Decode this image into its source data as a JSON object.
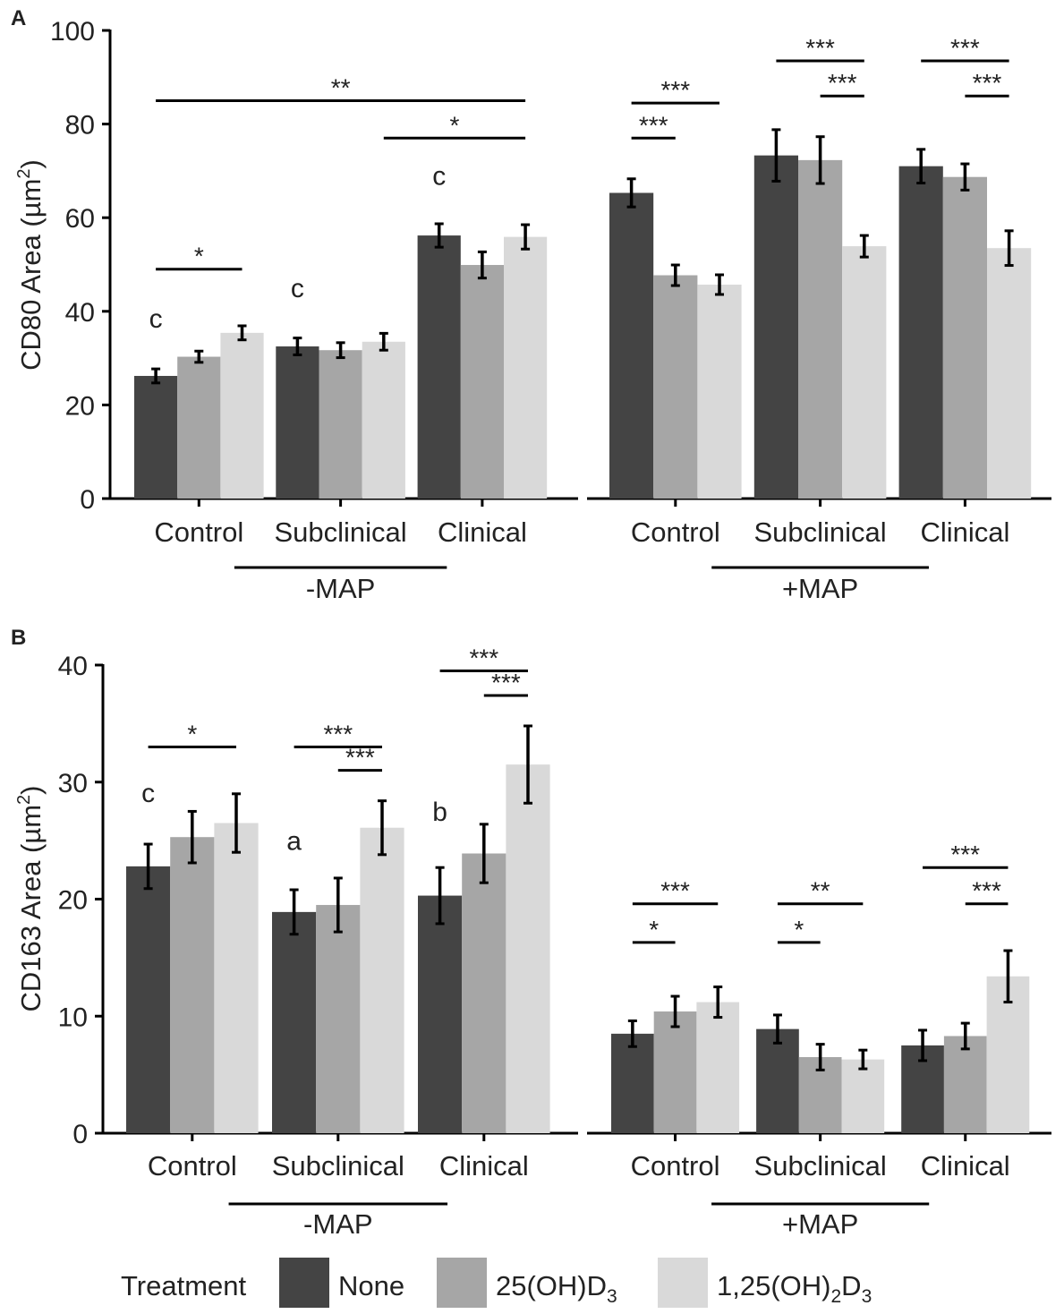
{
  "figure": {
    "panel_a_label": "A",
    "panel_b_label": "B"
  },
  "legend": {
    "title": "Treatment",
    "items": [
      {
        "label": "None",
        "color": "#444444"
      },
      {
        "label": "25(OH)D",
        "sub": "3",
        "color": "#a6a6a6"
      },
      {
        "label": "1,25(OH)",
        "sub": "2",
        "label2": "D",
        "sub2": "3",
        "color": "#d9d9d9"
      }
    ]
  },
  "chart_data": [
    {
      "type": "bar",
      "panel": "A",
      "ylabel": "CD80 Area (µm",
      "ylabel_sup": "2",
      "ylabel_end": ")",
      "ylim": [
        0,
        100
      ],
      "yticks": [
        0,
        20,
        40,
        60,
        80,
        100
      ],
      "groups": [
        {
          "name": "-MAP",
          "categories": [
            "Control",
            "Subclinical",
            "Clinical"
          ]
        },
        {
          "name": "+MAP",
          "categories": [
            "Control",
            "Subclinical",
            "Clinical"
          ]
        }
      ],
      "series": [
        {
          "name": "None",
          "values": [
            [
              26.2,
              32.5,
              56.2
            ],
            [
              65.3,
              73.3,
              71.0
            ]
          ],
          "errors": [
            [
              1.5,
              1.8,
              2.5
            ],
            [
              3.0,
              5.5,
              3.6
            ]
          ]
        },
        {
          "name": "25(OH)D3",
          "values": [
            [
              30.3,
              31.7,
              49.9
            ],
            [
              47.7,
              72.3,
              68.7
            ]
          ],
          "errors": [
            [
              1.2,
              1.6,
              2.8
            ],
            [
              2.2,
              5.0,
              2.8
            ]
          ]
        },
        {
          "name": "1,25(OH)2D3",
          "values": [
            [
              35.4,
              33.5,
              55.9
            ],
            [
              45.7,
              53.9,
              53.5
            ]
          ],
          "errors": [
            [
              1.5,
              1.8,
              2.6
            ],
            [
              2.1,
              2.3,
              3.7
            ]
          ]
        }
      ],
      "letters": [
        {
          "text": "c",
          "group": 0,
          "cat": 0,
          "y": 36.5
        },
        {
          "text": "c",
          "group": 0,
          "cat": 1,
          "y": 43
        },
        {
          "text": "c",
          "group": 0,
          "cat": 2,
          "y": 67
        }
      ],
      "brackets": [
        {
          "label": "*",
          "group": 0,
          "from": [
            0,
            0
          ],
          "to": [
            0,
            2
          ],
          "y": 49
        },
        {
          "label": "**",
          "group": 0,
          "from": [
            0,
            0
          ],
          "to": [
            2,
            2
          ],
          "y": 85
        },
        {
          "label": "*",
          "group": 0,
          "from": [
            1,
            2
          ],
          "to": [
            2,
            2
          ],
          "y": 77
        },
        {
          "label": "***",
          "group": 1,
          "from": [
            0,
            0
          ],
          "to": [
            0,
            1
          ],
          "y": 77
        },
        {
          "label": "***",
          "group": 1,
          "from": [
            0,
            0
          ],
          "to": [
            0,
            2
          ],
          "y": 84.5
        },
        {
          "label": "***",
          "group": 1,
          "from": [
            1,
            0
          ],
          "to": [
            1,
            2
          ],
          "y": 93.5
        },
        {
          "label": "***",
          "group": 1,
          "from": [
            1,
            1
          ],
          "to": [
            1,
            2
          ],
          "y": 86
        },
        {
          "label": "***",
          "group": 1,
          "from": [
            2,
            0
          ],
          "to": [
            2,
            2
          ],
          "y": 93.5
        },
        {
          "label": "***",
          "group": 1,
          "from": [
            2,
            1
          ],
          "to": [
            2,
            2
          ],
          "y": 86
        }
      ]
    },
    {
      "type": "bar",
      "panel": "B",
      "ylabel": "CD163 Area (µm",
      "ylabel_sup": "2",
      "ylabel_end": ")",
      "ylim": [
        0,
        40
      ],
      "yticks": [
        0,
        10,
        20,
        30,
        40
      ],
      "groups": [
        {
          "name": "-MAP",
          "categories": [
            "Control",
            "Subclinical",
            "Clinical"
          ]
        },
        {
          "name": "+MAP",
          "categories": [
            "Control",
            "Subclinical",
            "Clinical"
          ]
        }
      ],
      "series": [
        {
          "name": "None",
          "values": [
            [
              22.8,
              18.9,
              20.3
            ],
            [
              8.5,
              8.9,
              7.5
            ]
          ],
          "errors": [
            [
              1.9,
              1.9,
              2.4
            ],
            [
              1.1,
              1.2,
              1.3
            ]
          ]
        },
        {
          "name": "25(OH)D3",
          "values": [
            [
              25.3,
              19.5,
              23.9
            ],
            [
              10.4,
              6.5,
              8.3
            ]
          ],
          "errors": [
            [
              2.2,
              2.3,
              2.5
            ],
            [
              1.3,
              1.1,
              1.1
            ]
          ]
        },
        {
          "name": "1,25(OH)2D3",
          "values": [
            [
              26.5,
              26.1,
              31.5
            ],
            [
              11.2,
              6.3,
              13.4
            ]
          ],
          "errors": [
            [
              2.5,
              2.3,
              3.3
            ],
            [
              1.3,
              0.8,
              2.2
            ]
          ]
        }
      ],
      "letters": [
        {
          "text": "c",
          "group": 0,
          "cat": 0,
          "y": 28.3
        },
        {
          "text": "a",
          "group": 0,
          "cat": 1,
          "y": 24.2
        },
        {
          "text": "b",
          "group": 0,
          "cat": 2,
          "y": 26.7
        }
      ],
      "brackets": [
        {
          "label": "*",
          "group": 0,
          "from": [
            0,
            0
          ],
          "to": [
            0,
            2
          ],
          "y": 33
        },
        {
          "label": "***",
          "group": 0,
          "from": [
            1,
            0
          ],
          "to": [
            1,
            2
          ],
          "y": 33
        },
        {
          "label": "***",
          "group": 0,
          "from": [
            1,
            1
          ],
          "to": [
            1,
            2
          ],
          "y": 31
        },
        {
          "label": "***",
          "group": 0,
          "from": [
            2,
            0
          ],
          "to": [
            2,
            2
          ],
          "y": 39.5
        },
        {
          "label": "***",
          "group": 0,
          "from": [
            2,
            1
          ],
          "to": [
            2,
            2
          ],
          "y": 37.4
        },
        {
          "label": "*",
          "group": 1,
          "from": [
            0,
            0
          ],
          "to": [
            0,
            1
          ],
          "y": 16.3
        },
        {
          "label": "***",
          "group": 1,
          "from": [
            0,
            0
          ],
          "to": [
            0,
            2
          ],
          "y": 19.6
        },
        {
          "label": "*",
          "group": 1,
          "from": [
            1,
            0
          ],
          "to": [
            1,
            1
          ],
          "y": 16.3
        },
        {
          "label": "**",
          "group": 1,
          "from": [
            1,
            0
          ],
          "to": [
            1,
            2
          ],
          "y": 19.6
        },
        {
          "label": "***",
          "group": 1,
          "from": [
            2,
            0
          ],
          "to": [
            2,
            2
          ],
          "y": 22.7
        },
        {
          "label": "***",
          "group": 1,
          "from": [
            2,
            1
          ],
          "to": [
            2,
            2
          ],
          "y": 19.6
        }
      ]
    }
  ]
}
